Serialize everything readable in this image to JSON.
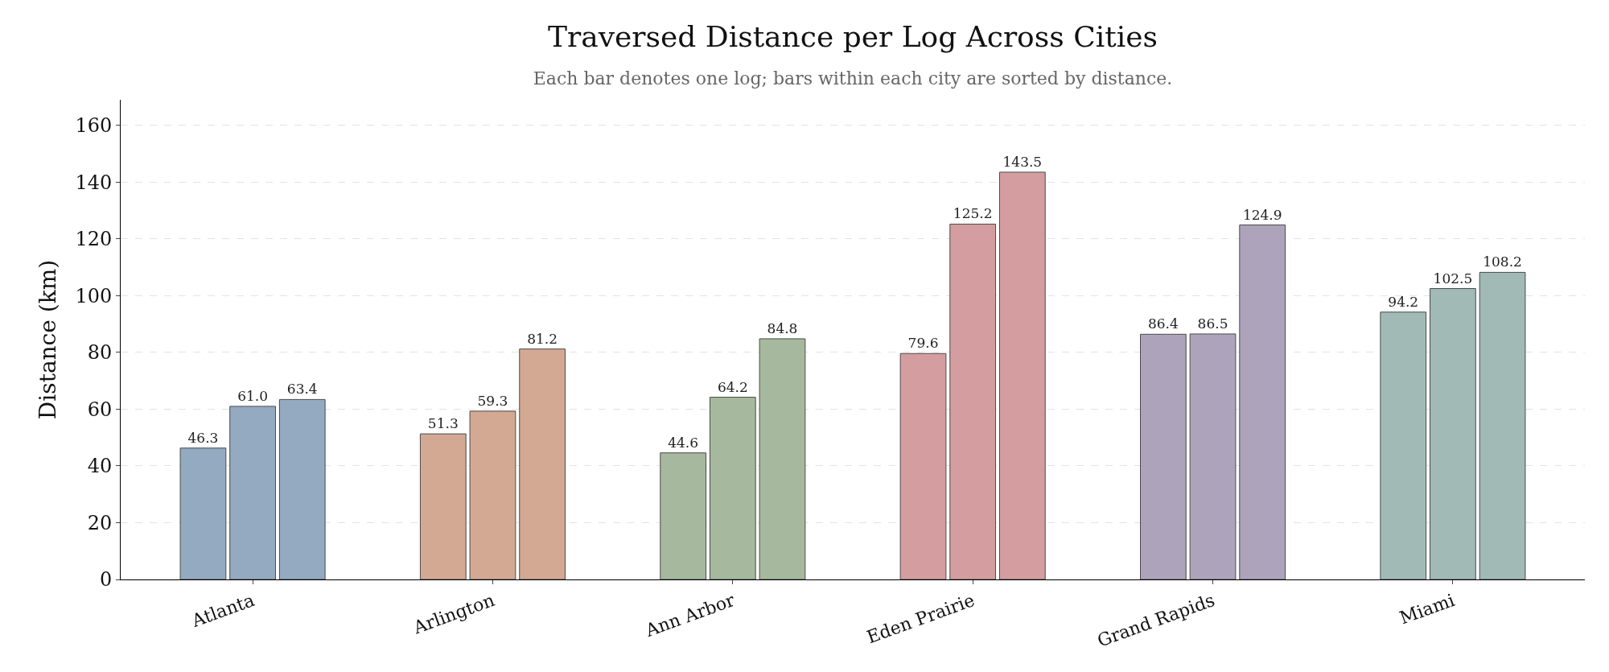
{
  "chart_data": {
    "type": "bar",
    "title": "Traversed Distance per Log Across Cities",
    "subtitle": "Each bar denotes one log; bars within each city are sorted by distance.",
    "ylabel": "Distance (km)",
    "categories": [
      "Atlanta",
      "Arlington",
      "Ann Arbor",
      "Eden Prairie",
      "Grand Rapids",
      "Miami"
    ],
    "series": [
      {
        "colors": [
          "#94aac0",
          "#d4a994",
          "#a6b99e",
          "#d49ea0",
          "#ada4bc",
          "#a1bab6"
        ],
        "values": [
          46.3,
          51.3,
          44.6,
          79.6,
          86.4,
          94.2
        ],
        "value_labels": [
          "46.3",
          "51.3",
          "44.6",
          "79.6",
          "86.4",
          "94.2"
        ]
      },
      {
        "colors": [
          "#94aac0",
          "#d4a994",
          "#a6b99e",
          "#d49ea0",
          "#ada4bc",
          "#a1bab6"
        ],
        "values": [
          61.0,
          59.3,
          64.2,
          125.2,
          86.5,
          102.5
        ],
        "value_labels": [
          "61.0",
          "59.3",
          "64.2",
          "125.2",
          "86.5",
          "102.5"
        ]
      },
      {
        "colors": [
          "#94aac0",
          "#d4a994",
          "#a6b99e",
          "#d49ea0",
          "#ada4bc",
          "#a1bab6"
        ],
        "values": [
          63.4,
          81.2,
          84.8,
          143.5,
          124.9,
          108.2
        ],
        "value_labels": [
          "63.4",
          "81.2",
          "84.8",
          "143.5",
          "124.9",
          "108.2"
        ]
      }
    ],
    "ylim": [
      0,
      169
    ],
    "yticks": [
      0,
      20,
      40,
      60,
      80,
      100,
      120,
      140,
      160
    ],
    "grid": "y"
  }
}
